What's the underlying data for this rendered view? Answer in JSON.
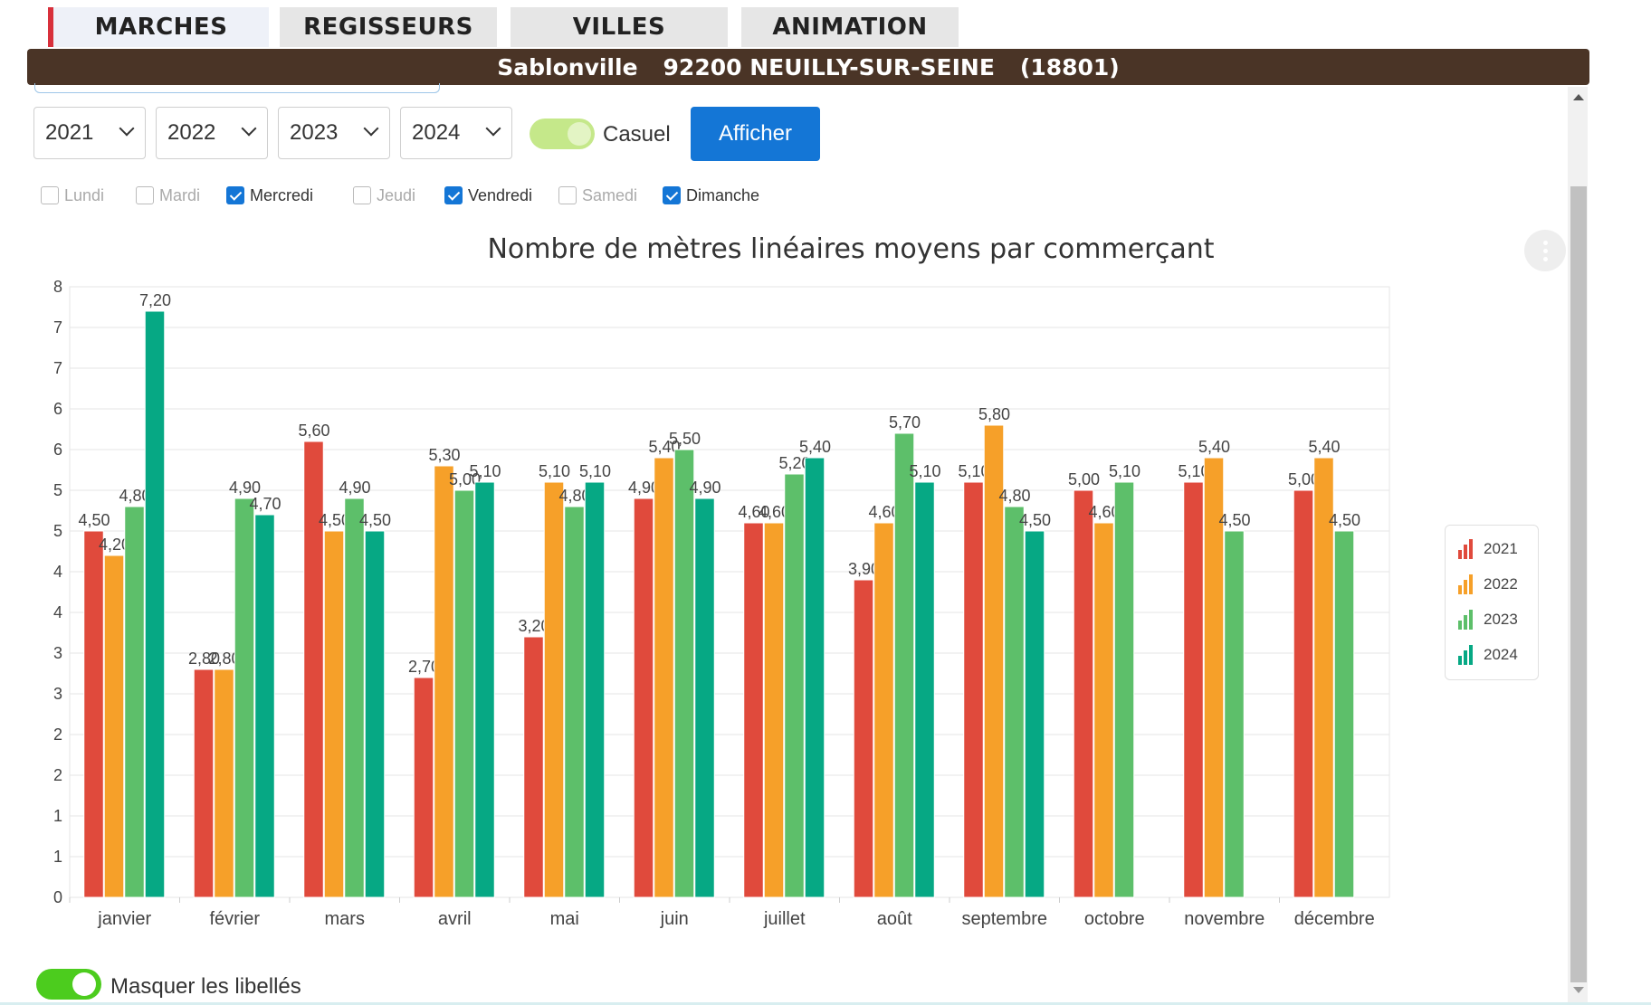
{
  "tabs": [
    {
      "label": "MARCHES",
      "active": true
    },
    {
      "label": "REGISSEURS",
      "active": false
    },
    {
      "label": "VILLES",
      "active": false
    },
    {
      "label": "ANIMATION",
      "active": false
    }
  ],
  "banner": {
    "market": "Sablonville",
    "city": "92200 NEUILLY-SUR-SEINE",
    "code": "(18801)"
  },
  "filters": {
    "years": [
      "2021",
      "2022",
      "2023",
      "2024"
    ],
    "casuel_label": "Casuel",
    "casuel_on": true,
    "afficher_label": "Afficher",
    "days": [
      {
        "label": "Lundi",
        "checked": false
      },
      {
        "label": "Mardi",
        "checked": false
      },
      {
        "label": "Mercredi",
        "checked": true
      },
      {
        "label": "Jeudi",
        "checked": false
      },
      {
        "label": "Vendredi",
        "checked": true
      },
      {
        "label": "Samedi",
        "checked": false
      },
      {
        "label": "Dimanche",
        "checked": true
      }
    ]
  },
  "chart_data": {
    "type": "bar",
    "title": "Nombre de mètres linéaires moyens par commerçant",
    "categories": [
      "janvier",
      "février",
      "mars",
      "avril",
      "mai",
      "juin",
      "juillet",
      "août",
      "septembre",
      "octobre",
      "novembre",
      "décembre"
    ],
    "y_tick_labels": [
      "0",
      "1",
      "1",
      "2",
      "2",
      "3",
      "3",
      "4",
      "4",
      "5",
      "5",
      "6",
      "6",
      "7",
      "7",
      "8"
    ],
    "ylim": [
      0,
      7.5
    ],
    "grid": true,
    "legend_position": "right",
    "series": [
      {
        "name": "2021",
        "color": "#e04a3c",
        "values": [
          4.5,
          2.8,
          5.6,
          2.7,
          3.2,
          4.9,
          4.6,
          3.9,
          5.1,
          5.0,
          5.1,
          5.0
        ],
        "labels": [
          "4,50",
          "2,80",
          "5,60",
          "2,70",
          "3,20",
          "4,90",
          "4,60",
          "3,90",
          "5,10",
          "5,00",
          "5,10",
          "5,00"
        ]
      },
      {
        "name": "2022",
        "color": "#f6a029",
        "values": [
          4.2,
          2.8,
          4.5,
          5.3,
          5.1,
          5.4,
          4.6,
          4.6,
          5.8,
          4.6,
          5.4,
          5.4
        ],
        "labels": [
          "4,20",
          "2,80",
          "4,50",
          "5,30",
          "5,10",
          "5,40",
          "4,60",
          "4,60",
          "5,80",
          "4,60",
          "5,40",
          "5,40"
        ]
      },
      {
        "name": "2023",
        "color": "#5dbf6a",
        "values": [
          4.8,
          4.9,
          4.9,
          5.0,
          4.8,
          5.5,
          5.2,
          5.7,
          4.8,
          5.1,
          4.5,
          4.5
        ],
        "labels": [
          "4,80",
          "4,90",
          "4,90",
          "5,00",
          "4,80",
          "5,50",
          "5,20",
          "5,70",
          "4,80",
          "5,10",
          "4,50",
          "4,50"
        ]
      },
      {
        "name": "2024",
        "color": "#06a884",
        "values": [
          7.2,
          4.7,
          4.5,
          5.1,
          5.1,
          4.9,
          5.4,
          5.1,
          4.5,
          null,
          null,
          null
        ],
        "labels": [
          "7,20",
          "4,70",
          "4,50",
          "5,10",
          "5,10",
          "4,90",
          "5,40",
          "5,10",
          "4,50",
          null,
          null,
          null
        ]
      }
    ]
  },
  "footer": {
    "mask_labels_text": "Masquer les libellés",
    "mask_on": true
  }
}
